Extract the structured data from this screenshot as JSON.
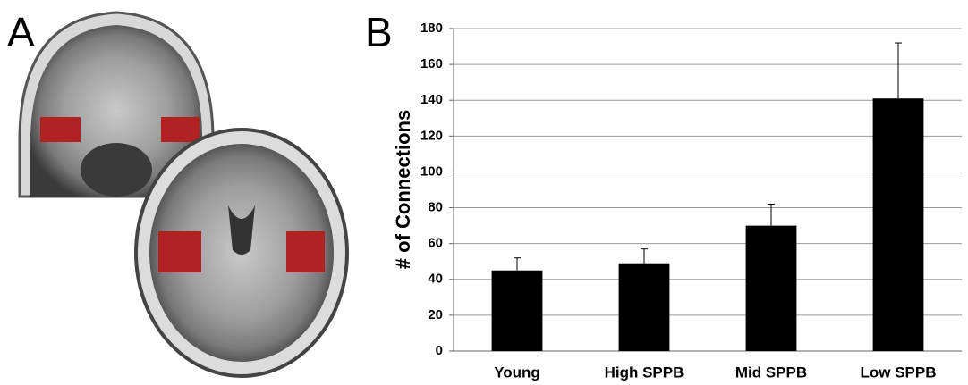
{
  "panels": {
    "a_label": "A",
    "b_label": "B"
  },
  "chart_data": {
    "type": "bar",
    "ylabel": "# of Connections",
    "categories": [
      "Young",
      "High SPPB",
      "Mid SPPB",
      "Low SPPB"
    ],
    "values": [
      45,
      49,
      70,
      141
    ],
    "errors": [
      7,
      8,
      12,
      31
    ],
    "color": "#000000",
    "ylim": [
      0,
      180
    ],
    "yticks": [
      0,
      20,
      40,
      60,
      80,
      100,
      120,
      140,
      160,
      180
    ],
    "grid": true
  }
}
